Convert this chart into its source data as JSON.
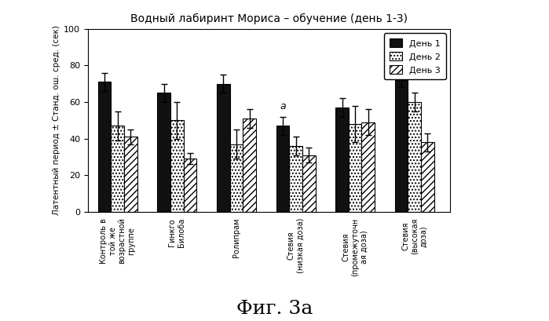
{
  "title": "Водный лабиринт Мориса – обучение (день 1-3)",
  "ylabel": "Латентный период ± Станд. ош. сред. (сек)",
  "figcaption": "Фиг. 3а",
  "categories": [
    "Контроль в\nтой же\nвозрастной\nгруппе",
    "Гинкго\nБилоба",
    "Ролипрам",
    "Стевия\n(низкая доза)",
    "Стевия\n(промежуточн\nая доза)",
    "Стевия\n(высокая\nдоза)"
  ],
  "day1_values": [
    71,
    65,
    70,
    47,
    57,
    72
  ],
  "day2_values": [
    47,
    50,
    37,
    36,
    48,
    60
  ],
  "day3_values": [
    41,
    29,
    51,
    31,
    49,
    38
  ],
  "day1_errors": [
    5,
    5,
    5,
    5,
    5,
    4
  ],
  "day2_errors": [
    8,
    10,
    8,
    5,
    10,
    5
  ],
  "day3_errors": [
    4,
    3,
    5,
    4,
    7,
    5
  ],
  "ylim": [
    0,
    100
  ],
  "yticks": [
    0,
    20,
    40,
    60,
    80,
    100
  ],
  "legend_labels": [
    "День 1",
    "День 2",
    "День 3"
  ],
  "annotation": "a",
  "annotation_group_idx": 3,
  "background_color": "#ffffff",
  "bar_color_day1": "#111111"
}
